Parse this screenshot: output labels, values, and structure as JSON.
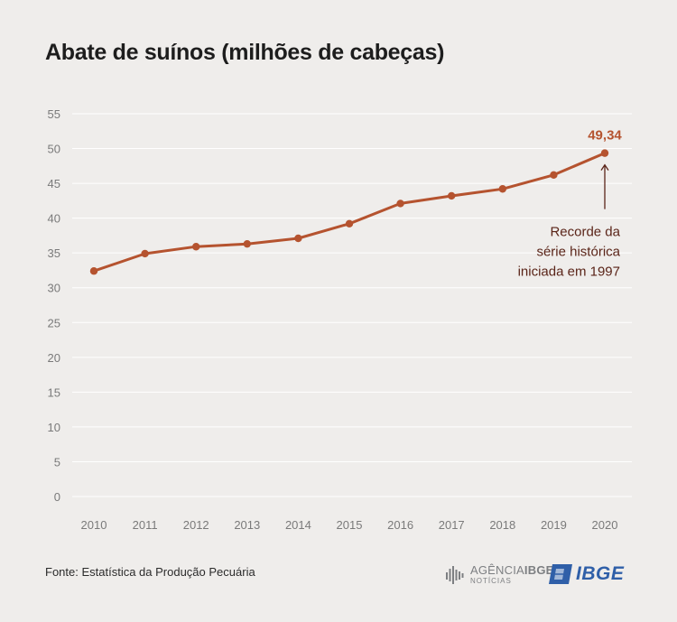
{
  "title": "Abate de suínos (milhões de cabeças)",
  "chart_data": {
    "type": "line",
    "categories": [
      "2010",
      "2011",
      "2012",
      "2013",
      "2014",
      "2015",
      "2016",
      "2017",
      "2018",
      "2019",
      "2020"
    ],
    "series": [
      {
        "values": [
          32.4,
          34.9,
          35.9,
          36.3,
          37.1,
          39.2,
          42.1,
          43.2,
          44.2,
          46.2,
          49.34
        ]
      }
    ],
    "ylim": [
      0,
      55
    ],
    "yticks": [
      "0",
      "5",
      "10",
      "15",
      "20",
      "25",
      "30",
      "35",
      "40",
      "45",
      "50",
      "55"
    ],
    "grid": true,
    "annotation": {
      "value_label": "49,34",
      "note_lines": [
        "Recorde da",
        "série histórica",
        "iniciada em 1997"
      ]
    },
    "colors": {
      "line": "#b5532f",
      "grid": "#ffffff",
      "text": "#7a7a7a",
      "background": "#efedeb"
    }
  },
  "footer": {
    "source": "Fonte: Estatística da Produção Pecuária",
    "agencia_part1": "AGÊNCIA",
    "agencia_part2": "IBGE",
    "agencia_sub": "NOTÍCIAS",
    "ibge_logo": "IBGE"
  }
}
